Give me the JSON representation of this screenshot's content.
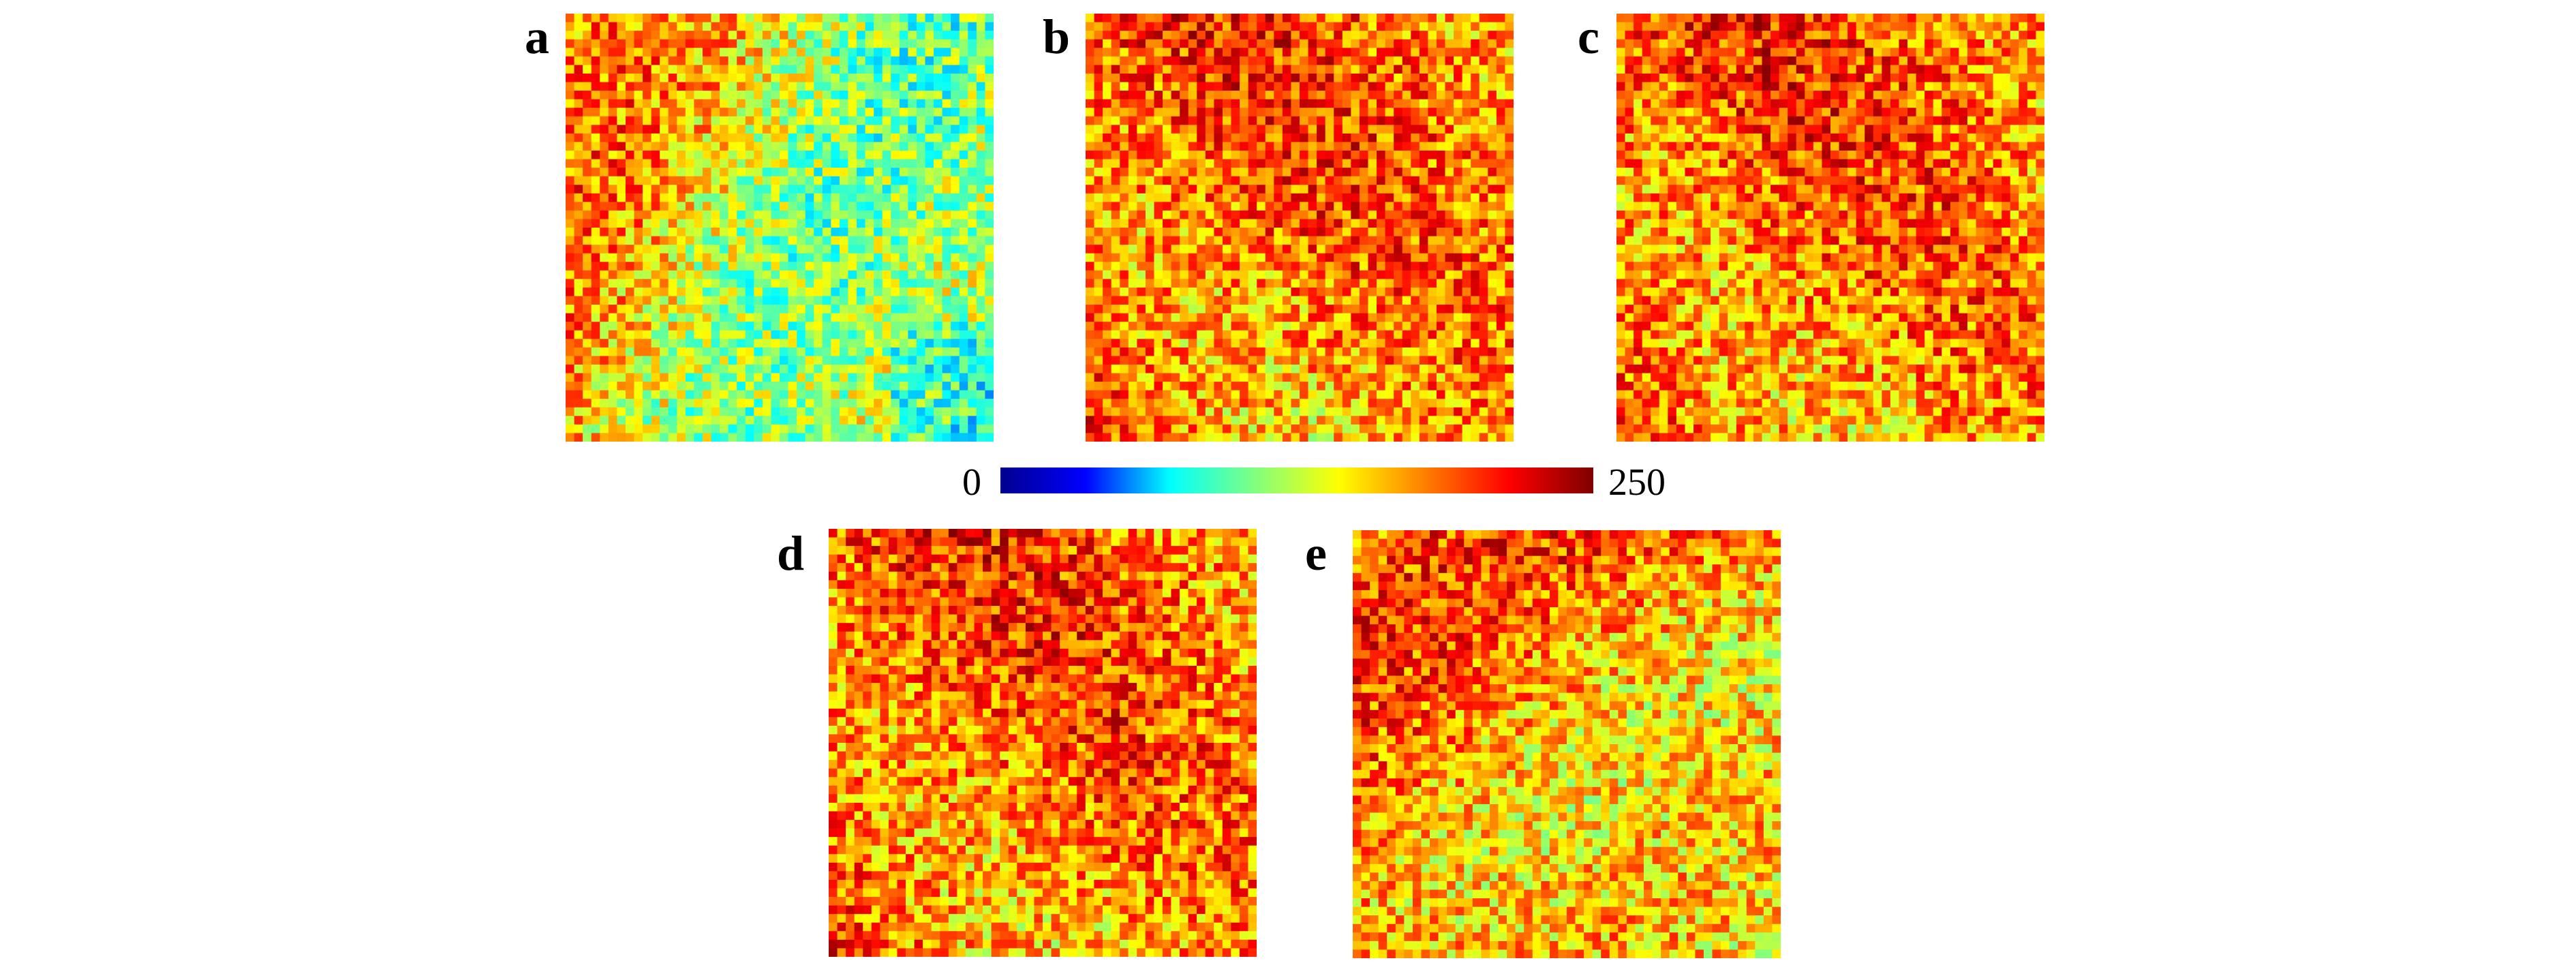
{
  "panels": [
    {
      "id": "a",
      "label": "a",
      "tone": "mixed-warm-cool"
    },
    {
      "id": "b",
      "label": "b",
      "tone": "warm"
    },
    {
      "id": "c",
      "label": "c",
      "tone": "warm"
    },
    {
      "id": "d",
      "label": "d",
      "tone": "warm"
    },
    {
      "id": "e",
      "label": "e",
      "tone": "warm-cool"
    }
  ],
  "colorbar": {
    "min_label": "0",
    "max_label": "250",
    "colormap": "jet",
    "stops": [
      "#00008f",
      "#0000ff",
      "#00ffff",
      "#80ff80",
      "#ffff00",
      "#ff8000",
      "#ff0000",
      "#800000"
    ]
  }
}
